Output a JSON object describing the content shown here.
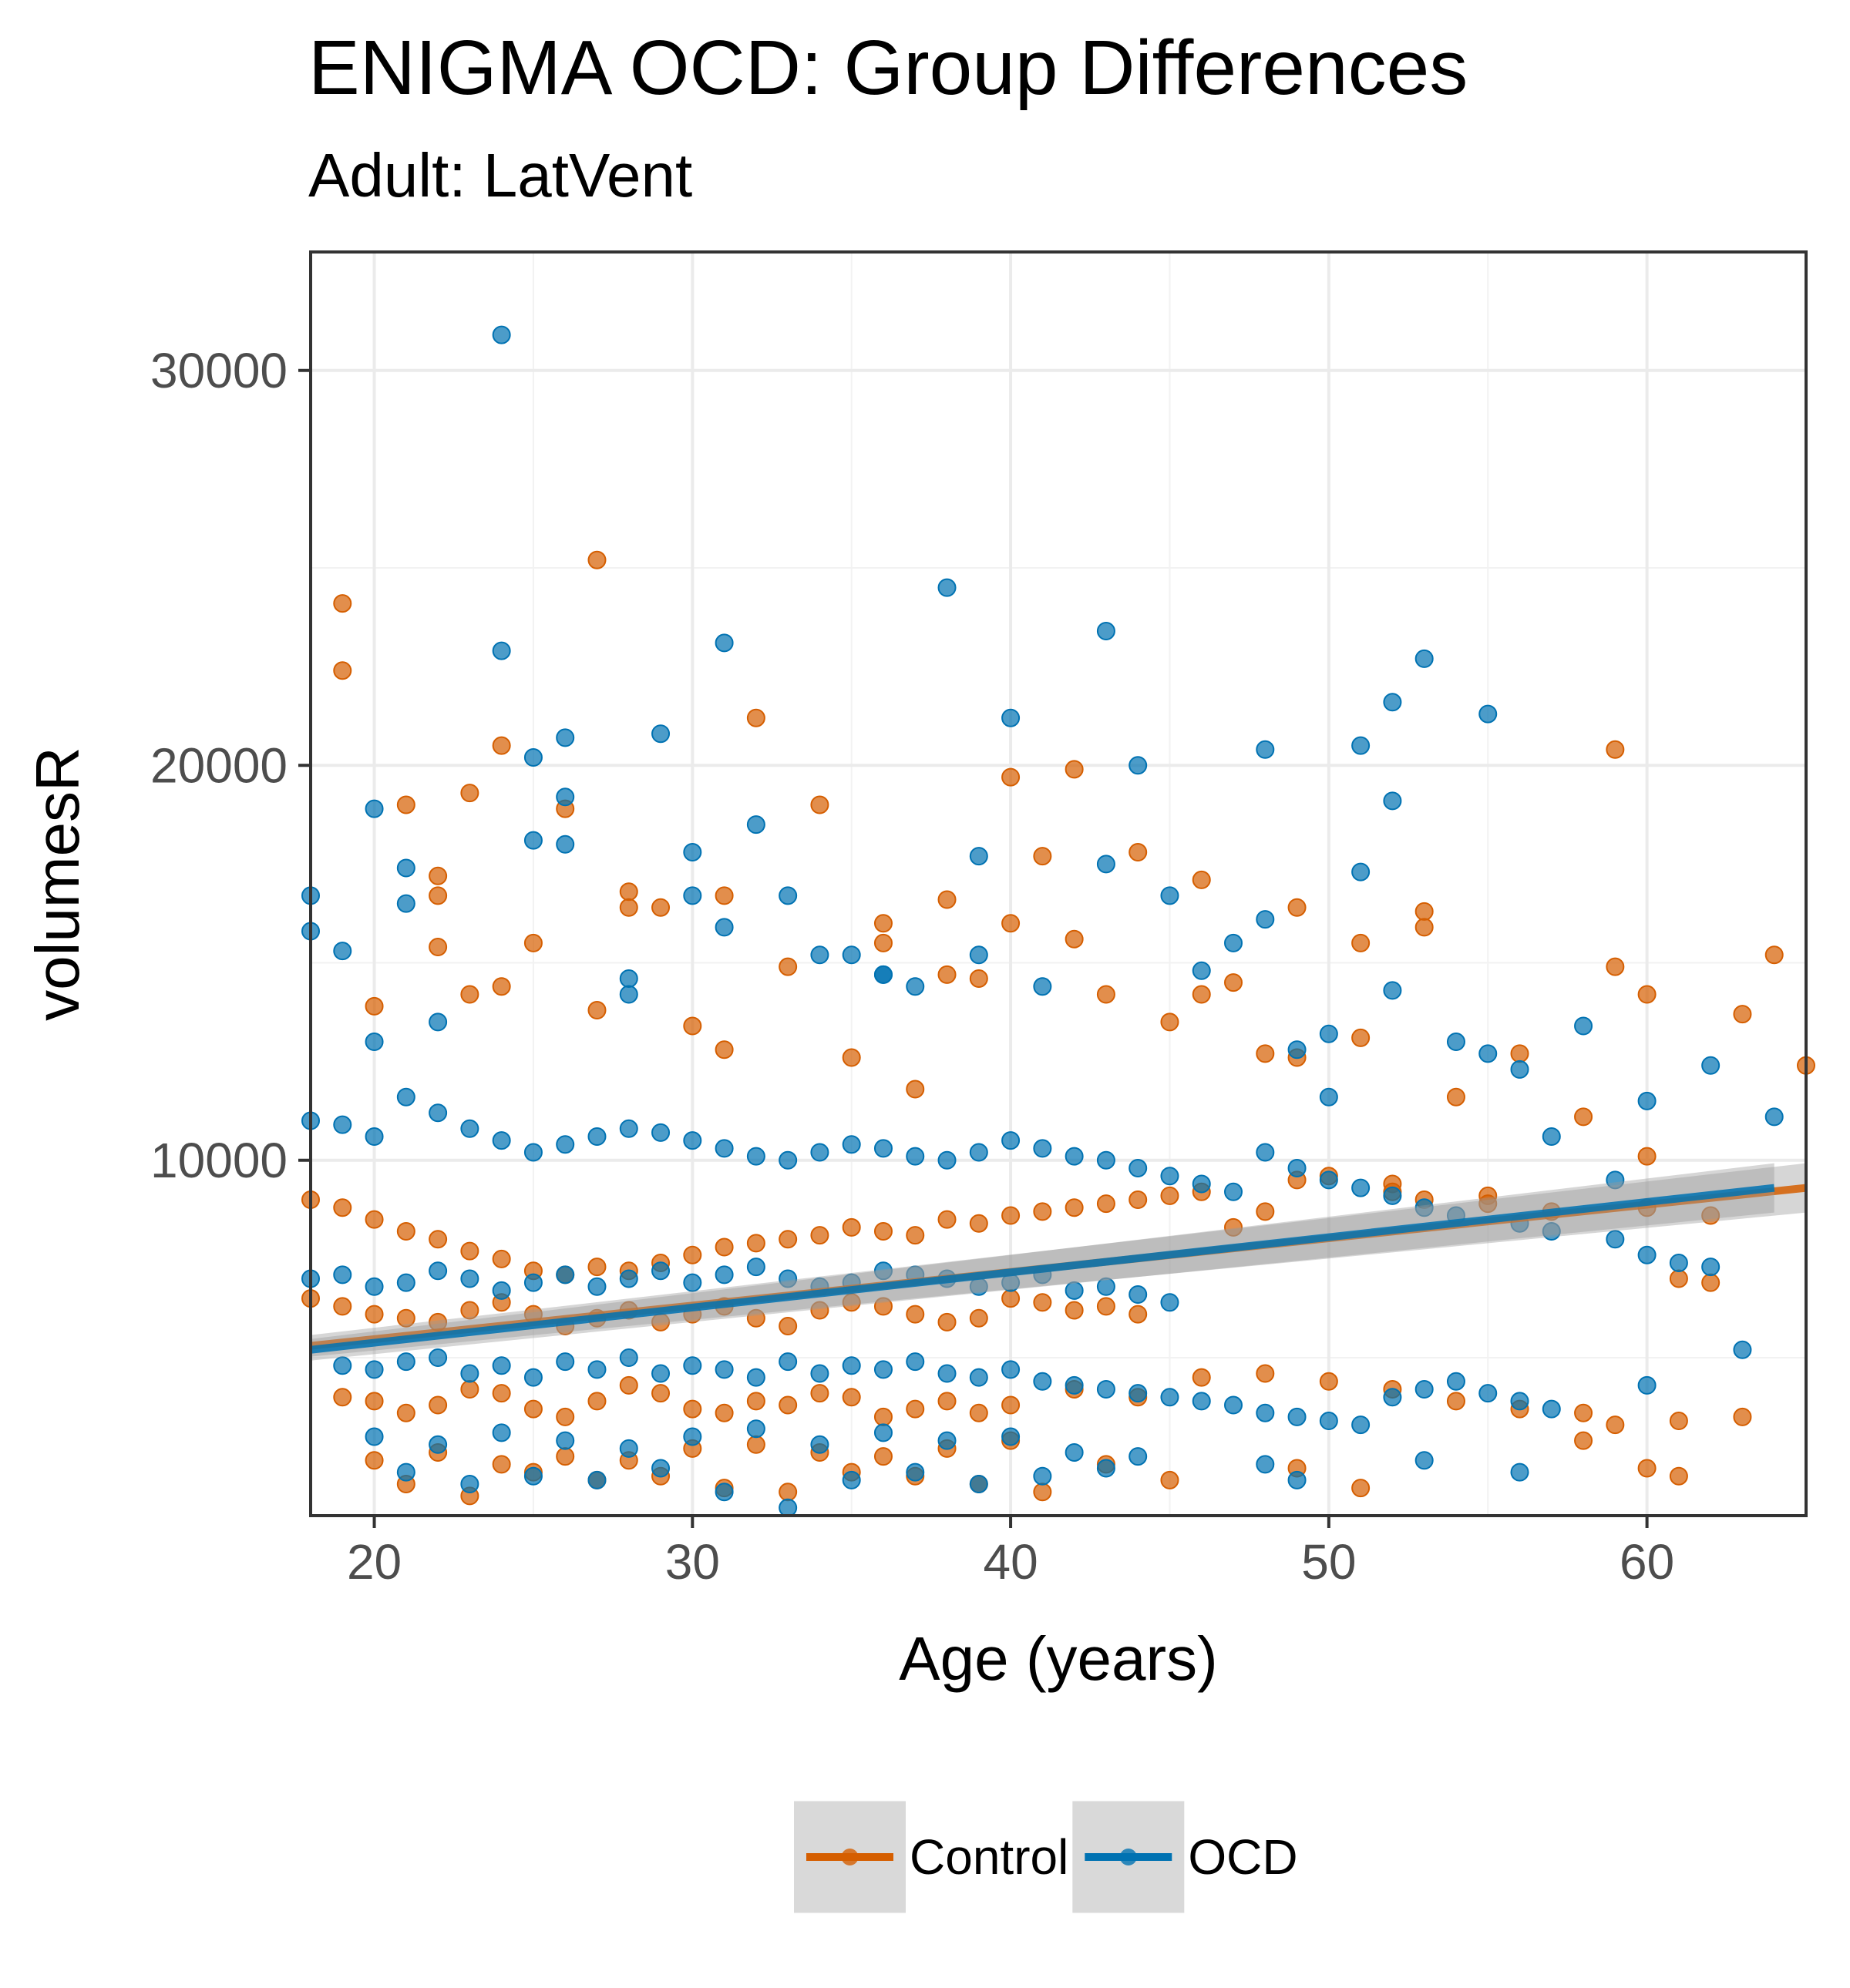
{
  "chart_data": {
    "type": "scatter",
    "title": "ENIGMA OCD: Group Differences",
    "subtitle": "Adult: LatVent",
    "xlabel": "Age (years)",
    "ylabel": "volumesR",
    "xlim": [
      18,
      65
    ],
    "ylim": [
      1000,
      33000
    ],
    "x_ticks": [
      20,
      30,
      40,
      50,
      60
    ],
    "y_ticks": [
      10000,
      20000,
      30000
    ],
    "grid": true,
    "legend_position": "bottom",
    "colors": {
      "Control": "#d55e00",
      "OCD": "#0072b2",
      "ribbon": "#999999",
      "legend_key_bg": "#d9d9d9"
    },
    "series": [
      {
        "name": "Control",
        "color": "#d55e00",
        "trend": {
          "x": [
            18,
            65
          ],
          "y": [
            5300,
            9300
          ]
        },
        "x": [
          19,
          19,
          20,
          21,
          22,
          22,
          22,
          23,
          23,
          24,
          24,
          25,
          26,
          27,
          27,
          28,
          28,
          29,
          30,
          31,
          31,
          32,
          33,
          34,
          35,
          36,
          36,
          37,
          38,
          38,
          39,
          40,
          40,
          41,
          42,
          42,
          43,
          44,
          45,
          46,
          46,
          47,
          48,
          49,
          49,
          51,
          51,
          52,
          53,
          53,
          54,
          55,
          56,
          58,
          59,
          59,
          60,
          60,
          61,
          62,
          63,
          64,
          65,
          18,
          19,
          20,
          21,
          22,
          23,
          24,
          25,
          26,
          27,
          28,
          29,
          30,
          31,
          32,
          33,
          34,
          35,
          36,
          37,
          38,
          39,
          40,
          41,
          42,
          43,
          44,
          45,
          46,
          47,
          48,
          49,
          50,
          52,
          53,
          55,
          57,
          60,
          62,
          18,
          19,
          20,
          21,
          22,
          23,
          24,
          25,
          26,
          27,
          28,
          29,
          30,
          31,
          32,
          33,
          34,
          35,
          36,
          37,
          38,
          39,
          40,
          41,
          42,
          43,
          44,
          19,
          20,
          21,
          22,
          23,
          24,
          25,
          26,
          27,
          28,
          29,
          30,
          31,
          32,
          33,
          34,
          35,
          36,
          37,
          38,
          39,
          40,
          42,
          44,
          46,
          48,
          50,
          52,
          54,
          56,
          58,
          59,
          61,
          63,
          20,
          22,
          24,
          26,
          28,
          30,
          32,
          34,
          36,
          38,
          40,
          43,
          21,
          23,
          25,
          27,
          29,
          31,
          33,
          35,
          37,
          39,
          41,
          45,
          49,
          51,
          58,
          60,
          61
        ],
        "y": [
          24100,
          22400,
          13900,
          19000,
          17200,
          16700,
          15400,
          19300,
          14200,
          20500,
          14400,
          15500,
          18900,
          25200,
          13800,
          16800,
          16400,
          16400,
          13400,
          16700,
          12800,
          21200,
          14900,
          19000,
          12600,
          16000,
          15500,
          11800,
          16600,
          14700,
          14600,
          19700,
          16000,
          17700,
          19900,
          15600,
          14200,
          17800,
          13500,
          17100,
          14200,
          14500,
          12700,
          16400,
          12600,
          15500,
          13100,
          9400,
          16300,
          15900,
          11600,
          9100,
          12700,
          11100,
          20400,
          14900,
          14200,
          10100,
          7000,
          6900,
          13700,
          15200,
          12400,
          9000,
          8800,
          8500,
          8200,
          8000,
          7700,
          7500,
          7200,
          7100,
          7300,
          7200,
          7400,
          7600,
          7800,
          7900,
          8000,
          8100,
          8300,
          8200,
          8100,
          8500,
          8400,
          8600,
          8700,
          8800,
          8900,
          9000,
          9100,
          9200,
          8300,
          8700,
          9500,
          9600,
          9200,
          9000,
          8900,
          8700,
          8800,
          8600,
          6500,
          6300,
          6100,
          6000,
          5900,
          6200,
          6400,
          6100,
          5800,
          6000,
          6200,
          5900,
          6100,
          6300,
          6000,
          5800,
          6200,
          6400,
          6300,
          6100,
          5900,
          6000,
          6500,
          6400,
          6200,
          6300,
          6100,
          4000,
          3900,
          3600,
          3800,
          4200,
          4100,
          3700,
          3500,
          3900,
          4300,
          4100,
          3700,
          3600,
          3900,
          3800,
          4100,
          4000,
          3500,
          3700,
          3900,
          3600,
          3800,
          4200,
          4000,
          4500,
          4600,
          4400,
          4200,
          3900,
          3700,
          3600,
          3300,
          3400,
          3500,
          2400,
          2600,
          2300,
          2500,
          2400,
          2700,
          2800,
          2600,
          2500,
          2700,
          2900,
          2300,
          1800,
          1500,
          2100,
          1900,
          2000,
          1700,
          1600,
          2100,
          2000,
          1800,
          1600,
          1900,
          2200,
          1700,
          2900,
          2200,
          2000
        ]
      },
      {
        "name": "OCD",
        "color": "#0072b2",
        "trend": {
          "x": [
            18,
            64
          ],
          "y": [
            5200,
            9300
          ]
        },
        "x": [
          18,
          18,
          19,
          20,
          20,
          21,
          21,
          22,
          24,
          24,
          25,
          25,
          26,
          26,
          26,
          28,
          28,
          29,
          30,
          30,
          31,
          31,
          32,
          33,
          34,
          35,
          36,
          36,
          37,
          38,
          39,
          39,
          40,
          41,
          43,
          43,
          44,
          45,
          46,
          47,
          48,
          48,
          49,
          50,
          50,
          51,
          51,
          52,
          52,
          52,
          53,
          54,
          55,
          55,
          56,
          57,
          58,
          59,
          60,
          62,
          63,
          64,
          18,
          19,
          20,
          21,
          22,
          23,
          24,
          25,
          26,
          27,
          28,
          29,
          30,
          31,
          32,
          33,
          34,
          35,
          36,
          37,
          38,
          39,
          40,
          41,
          42,
          43,
          44,
          45,
          46,
          47,
          48,
          49,
          50,
          51,
          52,
          53,
          54,
          56,
          57,
          59,
          60,
          61,
          62,
          18,
          19,
          20,
          21,
          22,
          23,
          24,
          25,
          26,
          27,
          28,
          29,
          30,
          31,
          32,
          33,
          34,
          35,
          36,
          37,
          38,
          39,
          40,
          41,
          42,
          43,
          44,
          45,
          19,
          20,
          21,
          22,
          23,
          24,
          25,
          26,
          27,
          28,
          29,
          30,
          31,
          32,
          33,
          34,
          35,
          36,
          37,
          38,
          39,
          40,
          41,
          42,
          43,
          44,
          45,
          46,
          47,
          48,
          49,
          50,
          51,
          52,
          53,
          54,
          55,
          56,
          57,
          60,
          20,
          22,
          24,
          26,
          28,
          30,
          32,
          34,
          36,
          38,
          40,
          42,
          44,
          21,
          23,
          25,
          27,
          29,
          31,
          33,
          35,
          37,
          39,
          41,
          43,
          48,
          49,
          53,
          56
        ],
        "y": [
          16700,
          15800,
          15300,
          18900,
          13000,
          17400,
          16500,
          13500,
          30900,
          22900,
          20200,
          18100,
          20700,
          19200,
          18000,
          14600,
          14200,
          20800,
          17800,
          16700,
          23100,
          15900,
          18500,
          16700,
          15200,
          15200,
          14700,
          14700,
          14400,
          24500,
          17700,
          15200,
          21200,
          14400,
          23400,
          17500,
          20000,
          16700,
          14800,
          15500,
          20400,
          16100,
          12800,
          13200,
          11600,
          20500,
          17300,
          21600,
          19100,
          14300,
          22700,
          13000,
          21300,
          12700,
          12300,
          10600,
          13400,
          9500,
          11500,
          12400,
          5200,
          11100,
          11000,
          10900,
          10600,
          11600,
          11200,
          10800,
          10500,
          10200,
          10400,
          10600,
          10800,
          10700,
          10500,
          10300,
          10100,
          10000,
          10200,
          10400,
          10300,
          10100,
          10000,
          10200,
          10500,
          10300,
          10100,
          10000,
          9800,
          9600,
          9400,
          9200,
          10200,
          9800,
          9500,
          9300,
          9100,
          8800,
          8600,
          8400,
          8200,
          8000,
          7600,
          7400,
          7300,
          7000,
          7100,
          6800,
          6900,
          7200,
          7000,
          6700,
          6900,
          7100,
          6800,
          7000,
          7200,
          6900,
          7100,
          7300,
          7000,
          6800,
          6900,
          7200,
          7100,
          7000,
          6800,
          6900,
          7100,
          6700,
          6800,
          6600,
          6400,
          4800,
          4700,
          4900,
          5000,
          4600,
          4800,
          4500,
          4900,
          4700,
          5000,
          4600,
          4800,
          4700,
          4500,
          4900,
          4600,
          4800,
          4700,
          4900,
          4600,
          4500,
          4700,
          4400,
          4300,
          4200,
          4100,
          4000,
          3900,
          3800,
          3600,
          3500,
          3400,
          3300,
          4000,
          4200,
          4400,
          4100,
          3900,
          3700,
          4300,
          3000,
          2800,
          3100,
          2900,
          2700,
          3000,
          3200,
          2800,
          3100,
          2900,
          3000,
          2600,
          2500,
          2100,
          1800,
          2000,
          1900,
          2200,
          1600,
          1200,
          1900,
          2100,
          1800,
          2000,
          2200,
          2300,
          1900,
          2400,
          2100
        ]
      }
    ]
  }
}
